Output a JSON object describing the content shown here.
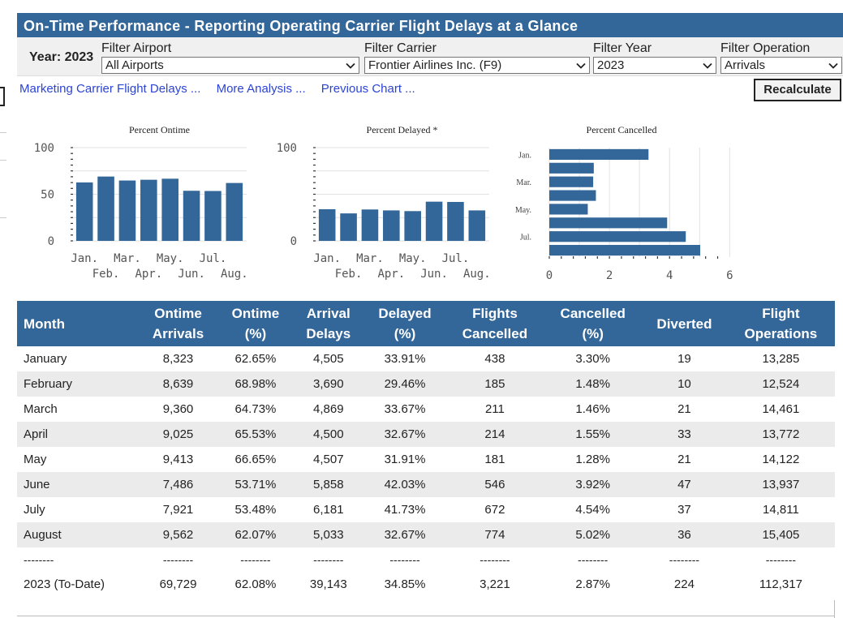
{
  "banner": {
    "title": "On-Time Performance - Reporting Operating Carrier Flight Delays at a Glance"
  },
  "filters": {
    "year_label": "Year: 2023",
    "airport": {
      "caption": "Filter Airport",
      "value": "All Airports"
    },
    "carrier": {
      "caption": "Filter Carrier",
      "value": "Frontier Airlines Inc. (F9)"
    },
    "year": {
      "caption": "Filter Year",
      "value": "2023"
    },
    "operation": {
      "caption": "Filter Operation",
      "value": "Arrivals"
    }
  },
  "links": [
    "Marketing Carrier Flight Delays ...",
    "More Analysis ...",
    "Previous Chart ..."
  ],
  "recalculate_label": "Recalculate",
  "colors": {
    "header": "#336699",
    "bar": "#336699",
    "link": "#2b44d3",
    "alt_row": "#ebebeb"
  },
  "icons": {
    "dropdown": "chevron-down-icon"
  },
  "chart_data": [
    {
      "type": "bar",
      "title": "Percent Ontime",
      "categories": [
        "Jan.",
        "Feb.",
        "Mar.",
        "Apr.",
        "May.",
        "Jun.",
        "Jul.",
        "Aug."
      ],
      "values": [
        62.65,
        68.98,
        64.73,
        65.53,
        66.65,
        53.71,
        53.48,
        62.07
      ],
      "yticks": [
        "0",
        "50",
        "100"
      ],
      "ylim": [
        0,
        100
      ],
      "grid": true
    },
    {
      "type": "bar",
      "title": "Percent Delayed *",
      "categories": [
        "Jan.",
        "Feb.",
        "Mar.",
        "Apr.",
        "May.",
        "Jun.",
        "Jul.",
        "Aug."
      ],
      "values": [
        33.91,
        29.46,
        33.67,
        32.67,
        31.91,
        42.03,
        41.73,
        32.67
      ],
      "yticks": [
        "0",
        "100"
      ],
      "ylim": [
        0,
        100
      ],
      "grid": true
    },
    {
      "type": "bar",
      "orientation": "horizontal",
      "title": "Percent Cancelled",
      "categories": [
        "Jan.",
        "Feb.",
        "Mar.",
        "Apr.",
        "May.",
        "Jun.",
        "Jul.",
        "Aug."
      ],
      "category_labels_shown": [
        "Jan.",
        "Mar.",
        "May.",
        "Jul."
      ],
      "values": [
        3.3,
        1.48,
        1.46,
        1.55,
        1.28,
        3.92,
        4.54,
        5.02
      ],
      "xticks": [
        "0",
        "2",
        "4",
        "6"
      ],
      "xlim": [
        0,
        6
      ],
      "grid": true
    }
  ],
  "table": {
    "headers": [
      [
        "Month"
      ],
      [
        "Ontime",
        "Arrivals"
      ],
      [
        "Ontime",
        "(%)"
      ],
      [
        "Arrival",
        "Delays"
      ],
      [
        "Delayed",
        "(%)"
      ],
      [
        "Flights",
        "Cancelled"
      ],
      [
        "Cancelled",
        "(%)"
      ],
      [
        "Diverted"
      ],
      [
        "Flight",
        "Operations"
      ]
    ],
    "rows": [
      [
        "January",
        "8,323",
        "62.65%",
        "4,505",
        "33.91%",
        "438",
        "3.30%",
        "19",
        "13,285"
      ],
      [
        "February",
        "8,639",
        "68.98%",
        "3,690",
        "29.46%",
        "185",
        "1.48%",
        "10",
        "12,524"
      ],
      [
        "March",
        "9,360",
        "64.73%",
        "4,869",
        "33.67%",
        "211",
        "1.46%",
        "21",
        "14,461"
      ],
      [
        "April",
        "9,025",
        "65.53%",
        "4,500",
        "32.67%",
        "214",
        "1.55%",
        "33",
        "13,772"
      ],
      [
        "May",
        "9,413",
        "66.65%",
        "4,507",
        "31.91%",
        "181",
        "1.28%",
        "21",
        "14,122"
      ],
      [
        "June",
        "7,486",
        "53.71%",
        "5,858",
        "42.03%",
        "546",
        "3.92%",
        "47",
        "13,937"
      ],
      [
        "July",
        "7,921",
        "53.48%",
        "6,181",
        "41.73%",
        "672",
        "4.54%",
        "37",
        "14,811"
      ],
      [
        "August",
        "9,562",
        "62.07%",
        "5,033",
        "32.67%",
        "774",
        "5.02%",
        "36",
        "15,405"
      ]
    ],
    "separator": [
      "--------",
      "--------",
      "--------",
      "--------",
      "--------",
      "--------",
      "--------",
      "--------",
      "--------"
    ],
    "total": [
      "2023 (To-Date)",
      "69,729",
      "62.08%",
      "39,143",
      "34.85%",
      "3,221",
      "2.87%",
      "224",
      "112,317"
    ]
  }
}
